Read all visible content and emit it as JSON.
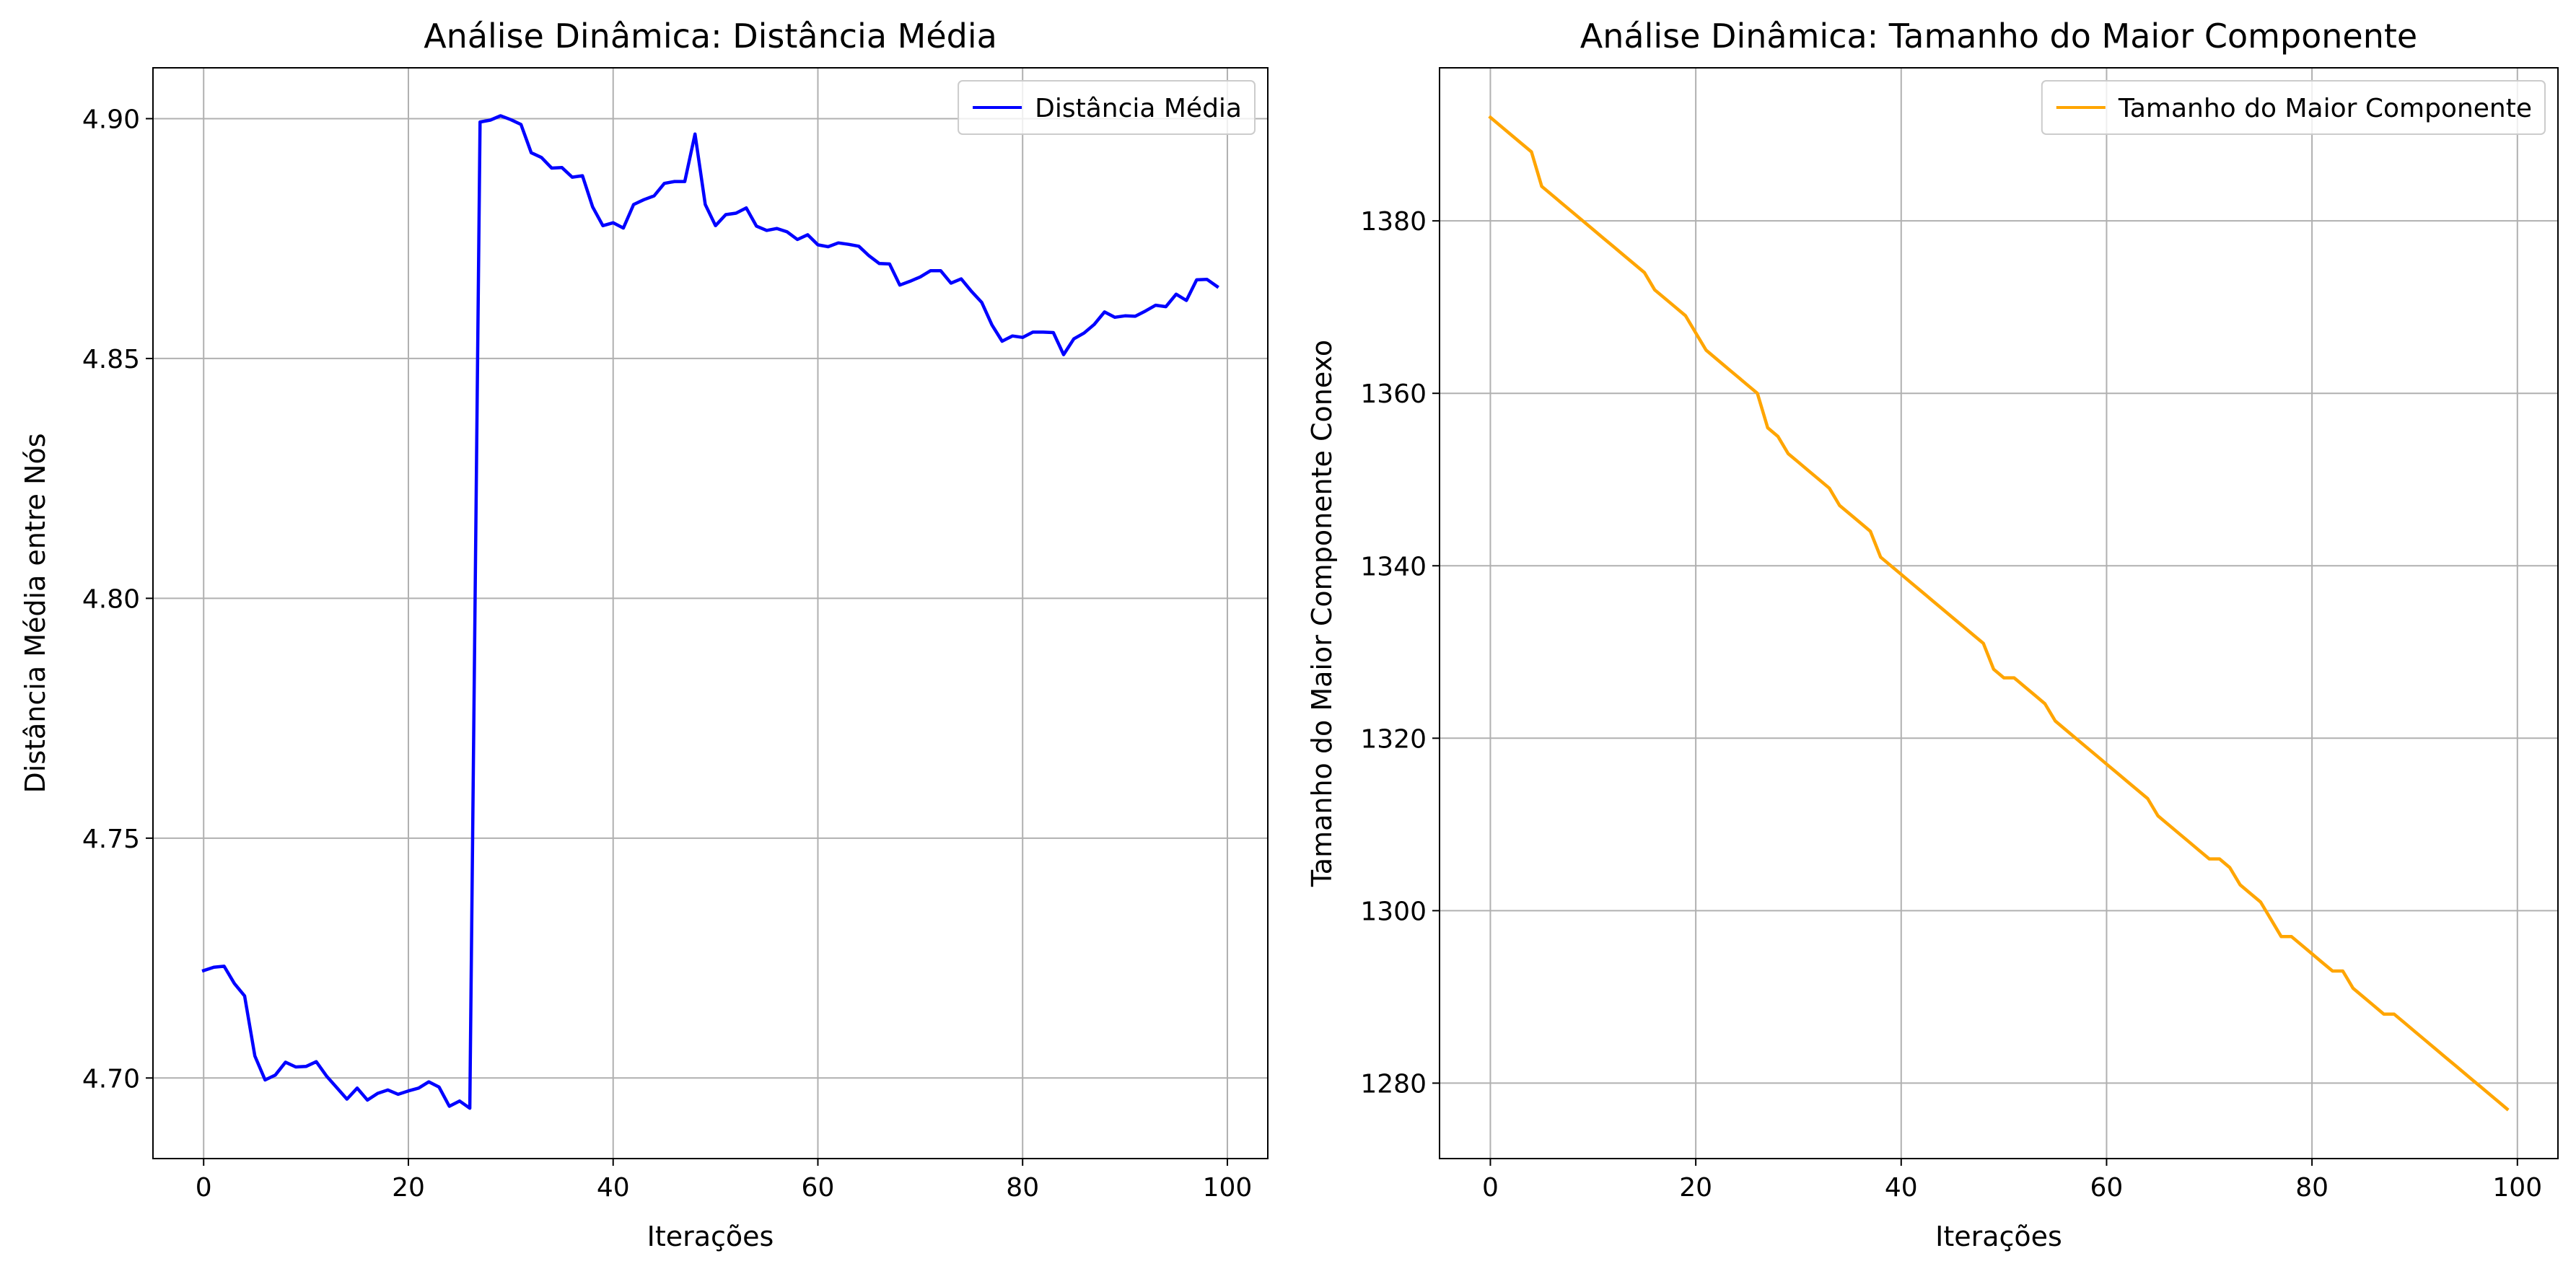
{
  "chart_data": [
    {
      "type": "line",
      "title": "Análise Dinâmica: Distância Média",
      "xlabel": "Iterações",
      "ylabel": "Distância Média entre Nós",
      "xlim": [
        -4.95,
        103.95
      ],
      "ylim": [
        4.6832,
        4.9106
      ],
      "xticks": [
        0,
        20,
        40,
        60,
        80,
        100
      ],
      "xtick_labels": [
        "0",
        "20",
        "40",
        "60",
        "80",
        "100"
      ],
      "yticks": [
        4.7,
        4.75,
        4.8,
        4.85,
        4.9
      ],
      "ytick_labels": [
        "4.70",
        "4.75",
        "4.80",
        "4.85",
        "4.90"
      ],
      "grid": true,
      "legend_position": "upper right",
      "series": [
        {
          "name": "Distância Média",
          "color": "#0000ff",
          "x": [
            0,
            1,
            2,
            3,
            4,
            5,
            6,
            7,
            8,
            9,
            10,
            11,
            12,
            13,
            14,
            15,
            16,
            17,
            18,
            19,
            20,
            21,
            22,
            23,
            24,
            25,
            26,
            27,
            28,
            29,
            30,
            31,
            32,
            33,
            34,
            35,
            36,
            37,
            38,
            39,
            40,
            41,
            42,
            43,
            44,
            45,
            46,
            47,
            48,
            49,
            50,
            51,
            52,
            53,
            54,
            55,
            56,
            57,
            58,
            59,
            60,
            61,
            62,
            63,
            64,
            65,
            66,
            67,
            68,
            69,
            70,
            71,
            72,
            73,
            74,
            75,
            76,
            77,
            78,
            79,
            80,
            81,
            82,
            83,
            84,
            85,
            86,
            87,
            88,
            89,
            90,
            91,
            92,
            93,
            94,
            95,
            96,
            97,
            98,
            99
          ],
          "values": [
            4.7224,
            4.7231,
            4.7233,
            4.7197,
            4.7171,
            4.7046,
            4.6996,
            4.7006,
            4.7033,
            4.7023,
            4.7024,
            4.7034,
            4.7004,
            4.698,
            4.6956,
            4.6979,
            4.6954,
            4.6968,
            4.6975,
            4.6966,
            4.6973,
            4.6979,
            4.6992,
            4.6981,
            4.6941,
            4.6952,
            4.6937,
            4.8993,
            4.8997,
            4.9006,
            4.8998,
            4.8988,
            4.8929,
            4.8919,
            4.8897,
            4.8898,
            4.8878,
            4.8881,
            4.8816,
            4.8777,
            4.8783,
            4.8772,
            4.8821,
            4.8831,
            4.8839,
            4.8865,
            4.8869,
            4.8869,
            4.8968,
            4.8821,
            4.8777,
            4.88,
            4.8803,
            4.8814,
            4.8776,
            4.8767,
            4.8771,
            4.8764,
            4.8748,
            4.8758,
            4.8737,
            4.8733,
            4.8741,
            4.8738,
            4.8734,
            4.8714,
            4.8698,
            4.8697,
            4.8653,
            4.8661,
            4.867,
            4.8683,
            4.8683,
            4.8657,
            4.8666,
            4.864,
            4.8617,
            4.857,
            4.8536,
            4.8547,
            4.8544,
            4.8555,
            4.8555,
            4.8554,
            4.8508,
            4.8541,
            4.8553,
            4.8571,
            4.8597,
            4.8586,
            4.8589,
            4.8588,
            4.8599,
            4.8611,
            4.8608,
            4.8634,
            4.8621,
            4.8664,
            4.8665,
            4.865
          ]
        }
      ]
    },
    {
      "type": "line",
      "title": "Análise Dinâmica: Tamanho do Maior Componente",
      "xlabel": "Iterações",
      "ylabel": "Tamanho do Maior Componente Conexo",
      "xlim": [
        -4.95,
        103.95
      ],
      "ylim": [
        1271.25,
        1397.75
      ],
      "xticks": [
        0,
        20,
        40,
        60,
        80,
        100
      ],
      "xtick_labels": [
        "0",
        "20",
        "40",
        "60",
        "80",
        "100"
      ],
      "yticks": [
        1280,
        1300,
        1320,
        1340,
        1360,
        1380
      ],
      "ytick_labels": [
        "1280",
        "1300",
        "1320",
        "1340",
        "1360",
        "1380"
      ],
      "grid": true,
      "legend_position": "upper right",
      "series": [
        {
          "name": "Tamanho do Maior Componente",
          "color": "#ffa500",
          "x": [
            0,
            1,
            2,
            3,
            4,
            5,
            6,
            7,
            8,
            9,
            10,
            11,
            12,
            13,
            14,
            15,
            16,
            17,
            18,
            19,
            20,
            21,
            22,
            23,
            24,
            25,
            26,
            27,
            28,
            29,
            30,
            31,
            32,
            33,
            34,
            35,
            36,
            37,
            38,
            39,
            40,
            41,
            42,
            43,
            44,
            45,
            46,
            47,
            48,
            49,
            50,
            51,
            52,
            53,
            54,
            55,
            56,
            57,
            58,
            59,
            60,
            61,
            62,
            63,
            64,
            65,
            66,
            67,
            68,
            69,
            70,
            71,
            72,
            73,
            74,
            75,
            76,
            77,
            78,
            79,
            80,
            81,
            82,
            83,
            84,
            85,
            86,
            87,
            88,
            89,
            90,
            91,
            92,
            93,
            94,
            95,
            96,
            97,
            98,
            99
          ],
          "values": [
            1392,
            1391,
            1390,
            1389,
            1388,
            1384,
            1383,
            1382,
            1381,
            1380,
            1379,
            1378,
            1377,
            1376,
            1375,
            1374,
            1372,
            1371,
            1370,
            1369,
            1367,
            1365,
            1364,
            1363,
            1362,
            1361,
            1360,
            1356,
            1355,
            1353,
            1352,
            1351,
            1350,
            1349,
            1347,
            1346,
            1345,
            1344,
            1341,
            1340,
            1339,
            1338,
            1337,
            1336,
            1335,
            1334,
            1333,
            1332,
            1331,
            1328,
            1327,
            1327,
            1326,
            1325,
            1324,
            1322,
            1321,
            1320,
            1319,
            1318,
            1317,
            1316,
            1315,
            1314,
            1313,
            1311,
            1310,
            1309,
            1308,
            1307,
            1306,
            1306,
            1305,
            1303,
            1302,
            1301,
            1299,
            1297,
            1297,
            1296,
            1295,
            1294,
            1293,
            1293,
            1291,
            1290,
            1289,
            1288,
            1288,
            1287,
            1286,
            1285,
            1284,
            1283,
            1282,
            1281,
            1280,
            1279,
            1278,
            1277
          ]
        }
      ]
    }
  ]
}
